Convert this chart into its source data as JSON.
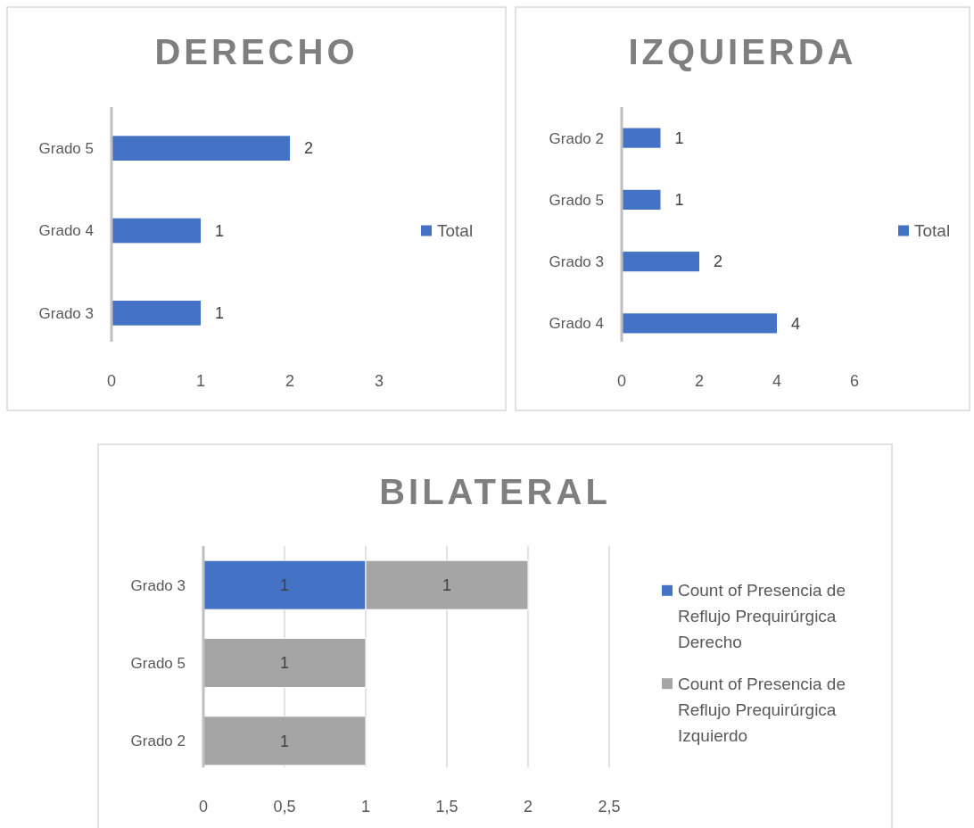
{
  "chart_data": [
    {
      "type": "bar",
      "title": "DERECHO",
      "orientation": "horizontal",
      "categories": [
        "Grado 5",
        "Grado 4",
        "Grado 3"
      ],
      "series": [
        {
          "name": "Total",
          "color": "#4472c4",
          "values": [
            2,
            1,
            1
          ]
        }
      ],
      "xlim": [
        0,
        3
      ],
      "xticks": [
        0,
        1,
        2,
        3
      ],
      "data_labels": true,
      "legend": "right",
      "grid": false
    },
    {
      "type": "bar",
      "title": "IZQUIERDA",
      "orientation": "horizontal",
      "categories": [
        "Grado 2",
        "Grado 5",
        "Grado 3",
        "Grado 4"
      ],
      "series": [
        {
          "name": "Total",
          "color": "#4472c4",
          "values": [
            1,
            1,
            2,
            4
          ]
        }
      ],
      "xlim": [
        0,
        6
      ],
      "xticks": [
        0,
        2,
        4,
        6
      ],
      "data_labels": true,
      "legend": "right",
      "grid": false
    },
    {
      "type": "bar",
      "title": "BILATERAL",
      "orientation": "horizontal",
      "stacked": true,
      "categories": [
        "Grado 3",
        "Grado 5",
        "Grado 2"
      ],
      "series": [
        {
          "name": "Count of Presencia de Reflujo Prequirúrgica Derecho",
          "color": "#4472c4",
          "values": [
            1,
            null,
            null
          ]
        },
        {
          "name": "Count of Presencia de Reflujo Prequirúrgica Izquierdo",
          "color": "#a5a5a5",
          "values": [
            1,
            1,
            1
          ]
        }
      ],
      "xlim": [
        0,
        2.5
      ],
      "xticks": [
        0,
        {
          "value": 0.5,
          "label": "0,5"
        },
        1,
        {
          "value": 1.5,
          "label": "1,5"
        },
        2,
        {
          "value": 2.5,
          "label": "2,5"
        }
      ],
      "data_labels": true,
      "legend": "right",
      "grid": "x"
    }
  ]
}
